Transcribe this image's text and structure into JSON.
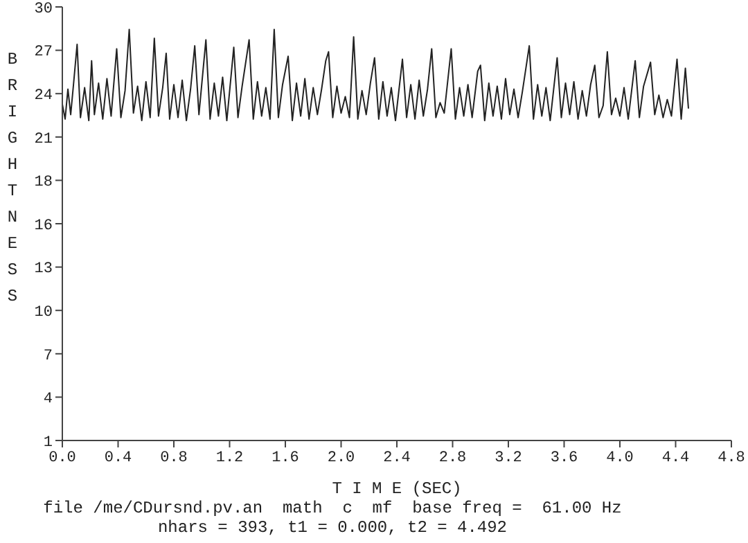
{
  "chart_data": {
    "type": "line",
    "xlabel": "T I M E (SEC)",
    "ylabel": "BRIGHTNESS",
    "x": [
      0.0,
      0.02,
      0.04,
      0.06,
      0.08,
      0.106,
      0.13,
      0.16,
      0.19,
      0.21,
      0.23,
      0.26,
      0.29,
      0.32,
      0.35,
      0.39,
      0.42,
      0.45,
      0.48,
      0.51,
      0.54,
      0.57,
      0.6,
      0.63,
      0.66,
      0.69,
      0.72,
      0.745,
      0.77,
      0.8,
      0.83,
      0.86,
      0.89,
      0.92,
      0.95,
      0.98,
      1.03,
      1.06,
      1.09,
      1.12,
      1.15,
      1.18,
      1.23,
      1.26,
      1.29,
      1.34,
      1.37,
      1.4,
      1.43,
      1.46,
      1.49,
      1.52,
      1.55,
      1.58,
      1.62,
      1.65,
      1.68,
      1.71,
      1.74,
      1.77,
      1.8,
      1.83,
      1.86,
      1.89,
      1.91,
      1.94,
      1.97,
      2.0,
      2.03,
      2.06,
      2.09,
      2.12,
      2.15,
      2.18,
      2.21,
      2.24,
      2.27,
      2.3,
      2.33,
      2.36,
      2.39,
      2.44,
      2.47,
      2.5,
      2.53,
      2.56,
      2.59,
      2.62,
      2.65,
      2.68,
      2.71,
      2.74,
      2.79,
      2.82,
      2.85,
      2.88,
      2.91,
      2.94,
      2.98,
      3.0,
      3.03,
      3.06,
      3.09,
      3.12,
      3.15,
      3.18,
      3.21,
      3.24,
      3.27,
      3.3,
      3.35,
      3.38,
      3.41,
      3.44,
      3.47,
      3.5,
      3.55,
      3.58,
      3.61,
      3.64,
      3.67,
      3.7,
      3.73,
      3.76,
      3.79,
      3.82,
      3.85,
      3.88,
      3.91,
      3.94,
      3.97,
      4.0,
      4.03,
      4.06,
      4.11,
      4.14,
      4.17,
      4.22,
      4.25,
      4.28,
      4.31,
      4.34,
      4.37,
      4.41,
      4.44,
      4.47,
      4.492
    ],
    "series": [
      {
        "color": "#222222",
        "values": [
          23.5,
          22.5,
          24.5,
          22.8,
          24.8,
          27.5,
          22.6,
          24.6,
          22.4,
          26.4,
          22.8,
          24.9,
          22.5,
          25.2,
          22.7,
          27.2,
          22.6,
          24.4,
          28.5,
          22.9,
          24.7,
          22.4,
          25.0,
          22.6,
          27.9,
          22.7,
          24.6,
          26.9,
          22.5,
          24.8,
          22.6,
          25.1,
          22.4,
          24.5,
          27.4,
          22.8,
          27.8,
          22.5,
          24.9,
          22.7,
          25.3,
          22.4,
          27.3,
          22.6,
          24.7,
          27.8,
          22.5,
          25.0,
          22.7,
          24.6,
          22.5,
          28.5,
          22.6,
          24.8,
          26.7,
          22.4,
          24.9,
          22.7,
          25.2,
          22.5,
          24.6,
          22.8,
          24.5,
          26.4,
          27.0,
          22.6,
          24.7,
          22.9,
          24.0,
          22.6,
          28.0,
          22.5,
          24.4,
          22.8,
          24.9,
          26.6,
          22.5,
          25.0,
          22.7,
          24.6,
          22.4,
          26.5,
          22.6,
          24.8,
          22.5,
          25.1,
          22.7,
          24.5,
          27.2,
          22.6,
          23.6,
          22.9,
          27.2,
          22.5,
          24.6,
          22.7,
          24.8,
          22.6,
          25.7,
          26.1,
          22.4,
          24.9,
          22.7,
          24.7,
          22.5,
          25.2,
          22.8,
          24.5,
          22.6,
          24.3,
          27.4,
          22.5,
          24.8,
          22.7,
          24.6,
          22.4,
          26.6,
          22.6,
          24.9,
          22.8,
          25.0,
          22.5,
          24.4,
          22.7,
          24.8,
          26.1,
          22.6,
          23.4,
          27.0,
          22.8,
          23.9,
          22.7,
          24.6,
          22.5,
          26.4,
          22.6,
          24.7,
          26.3,
          22.8,
          24.1,
          22.6,
          23.8,
          22.7,
          26.5,
          22.5,
          25.9,
          23.2
        ]
      }
    ],
    "xlim": [
      0,
      4.8
    ],
    "xticks": [
      {
        "value": 0,
        "label": "0.0"
      },
      0.4,
      0.8,
      1.2,
      1.6,
      {
        "value": 2,
        "label": "2.0"
      },
      2.4,
      2.8,
      3.2,
      3.6,
      {
        "value": 4,
        "label": "4.0"
      },
      4.4,
      4.8
    ],
    "ylim": [
      1,
      30
    ],
    "yticks": [
      1,
      {
        "value": 3.9,
        "label": "4"
      },
      {
        "value": 6.8,
        "label": "7"
      },
      {
        "value": 9.7,
        "label": "10"
      },
      {
        "value": 12.6,
        "label": "13"
      },
      {
        "value": 15.5,
        "label": "16"
      },
      {
        "value": 18.4,
        "label": "18"
      },
      {
        "value": 21.3,
        "label": "21"
      },
      {
        "value": 24.2,
        "label": "24"
      },
      {
        "value": 27.1,
        "label": "27"
      },
      30
    ],
    "marker": "none",
    "line_style": "solid",
    "annotations": [
      "file /me/CDursnd.pv.an  math  c  mf  base freq =  61.00 Hz",
      "nhars = 393, t1 = 0.000, t2 = 4.492"
    ]
  }
}
